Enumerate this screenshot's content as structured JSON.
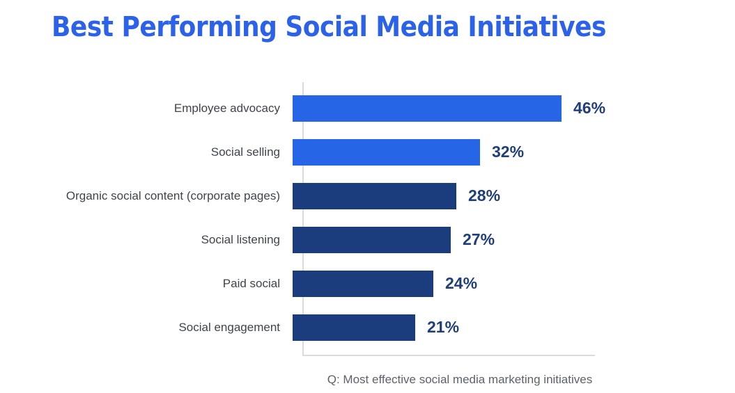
{
  "title": "Best Performing Social Media Initiatives",
  "caption": "Q: Most effective social media marketing initiatives",
  "colors": {
    "title": "#2B62E9",
    "highlight_bar": "#2565E6",
    "default_bar": "#1C3D7D",
    "value_label": "#203E79",
    "category_label": "#3F434B",
    "caption": "#5C626B",
    "axis": "#D9DBDD"
  },
  "chart_data": {
    "type": "bar",
    "orientation": "horizontal",
    "title": "Best Performing Social Media Initiatives",
    "xlabel": "",
    "ylabel": "",
    "xlim": [
      0,
      50
    ],
    "grid": false,
    "legend": false,
    "value_suffix": "%",
    "categories": [
      "Employee advocacy",
      "Social selling",
      "Organic social content (corporate pages)",
      "Social listening",
      "Paid social",
      "Social engagement"
    ],
    "values": [
      46,
      32,
      28,
      27,
      24,
      21
    ],
    "bar_colors": [
      "#2565E6",
      "#2565E6",
      "#1C3D7D",
      "#1C3D7D",
      "#1C3D7D",
      "#1C3D7D"
    ],
    "footnote": "Q: Most effective social media marketing initiatives"
  }
}
